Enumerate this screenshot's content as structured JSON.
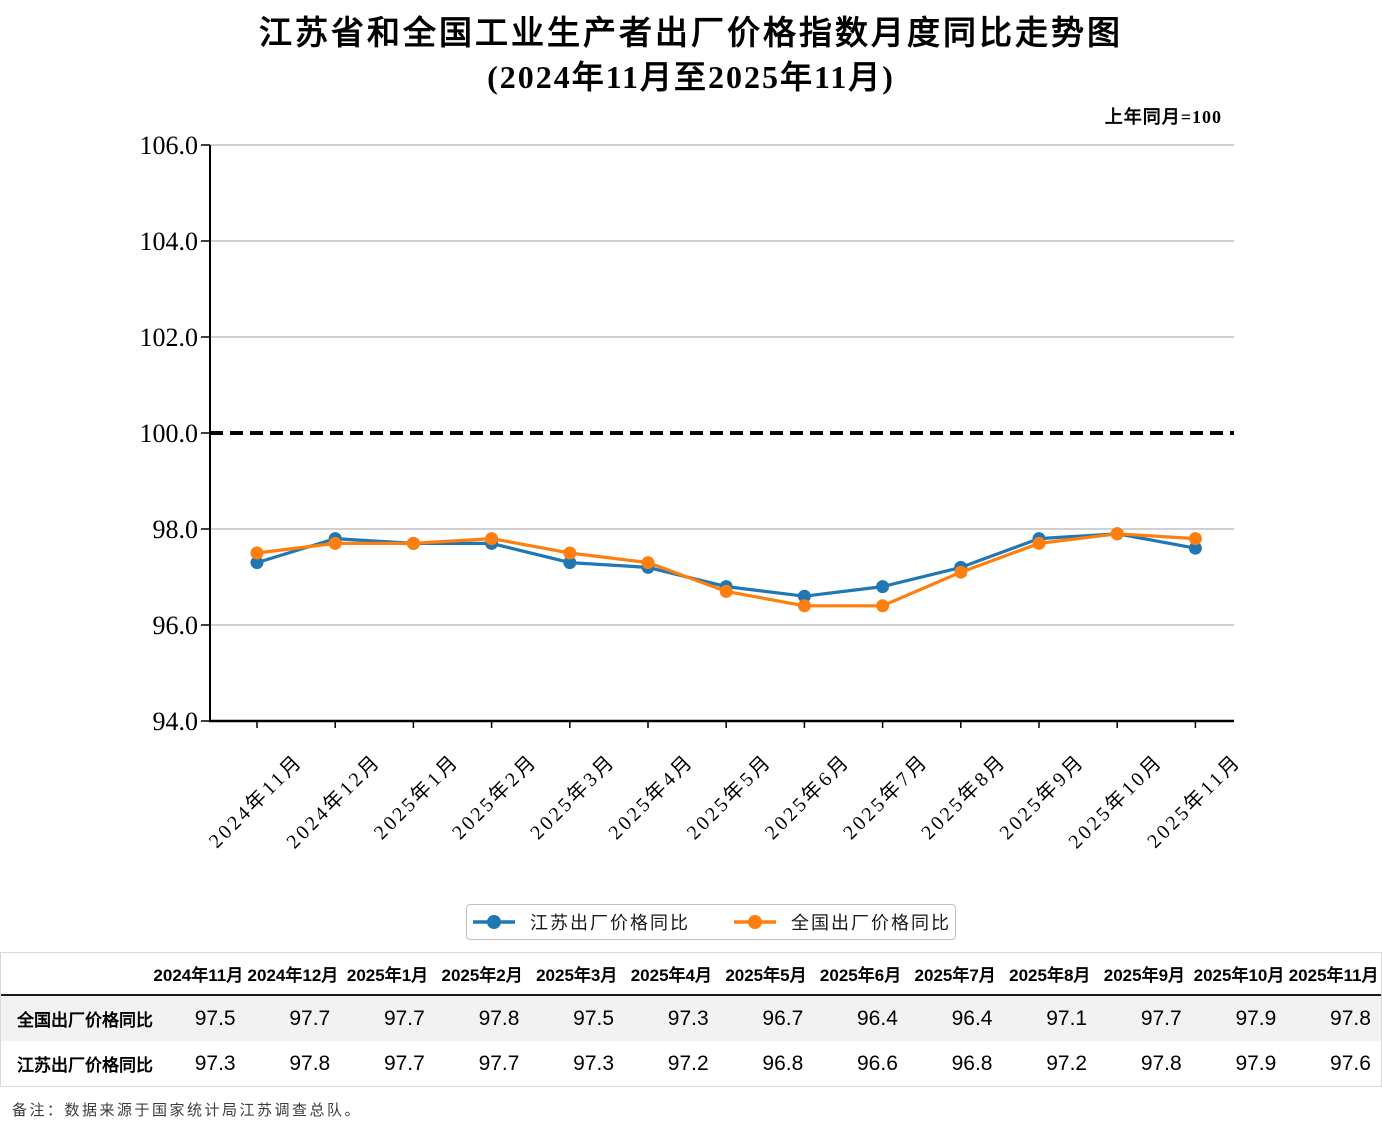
{
  "page": {
    "title_line1": "江苏省和全国工业生产者出厂价格指数月度同比走势图",
    "title_line2": "(2024年11月至2025年11月)",
    "unit_note": "上年同月=100",
    "footnote": "备注：数据来源于国家统计局江苏调查总队。"
  },
  "colors": {
    "jiangsu": "#1F77B4",
    "national": "#FF7F0E",
    "grid": "#B3B3B3",
    "axis": "#000000",
    "ref_line": "#000000",
    "stripe": "#F2F2F2",
    "table_border": "#D9D9D9",
    "header_divider": "#1A1A1A",
    "legend_border": "#BFBFBF",
    "footnote_text": "#3C3C3C"
  },
  "chart_data": {
    "type": "line",
    "title": "江苏省和全国工业生产者出厂价格指数月度同比走势图(2024年11月至2025年11月)",
    "unit_note": "上年同月=100",
    "categories": [
      "2024年11月",
      "2024年12月",
      "2025年1月",
      "2025年2月",
      "2025年3月",
      "2025年4月",
      "2025年5月",
      "2025年6月",
      "2025年7月",
      "2025年8月",
      "2025年9月",
      "2025年10月",
      "2025年11月"
    ],
    "series": [
      {
        "name": "江苏出厂价格同比",
        "color": "#1F77B4",
        "values": [
          97.3,
          97.8,
          97.7,
          97.7,
          97.3,
          97.2,
          96.8,
          96.6,
          96.8,
          97.2,
          97.8,
          97.9,
          97.6
        ]
      },
      {
        "name": "全国出厂价格同比",
        "color": "#FF7F0E",
        "values": [
          97.5,
          97.7,
          97.7,
          97.8,
          97.5,
          97.3,
          96.7,
          96.4,
          96.4,
          97.1,
          97.7,
          97.9,
          97.8
        ]
      }
    ],
    "ylim": [
      94.0,
      106.0
    ],
    "ytick_step": 2.0,
    "ytick_labels": [
      "94.0",
      "96.0",
      "98.0",
      "100.0",
      "102.0",
      "104.0",
      "106.0"
    ],
    "reference_line": {
      "value": 100.0,
      "style": "dashed"
    },
    "grid": true,
    "legend_position": "bottom"
  },
  "table": {
    "columns": [
      "2024年11月",
      "2024年12月",
      "2025年1月",
      "2025年2月",
      "2025年3月",
      "2025年4月",
      "2025年5月",
      "2025年6月",
      "2025年7月",
      "2025年8月",
      "2025年9月",
      "2025年10月",
      "2025年11月"
    ],
    "rows": [
      {
        "label": "全国出厂价格同比",
        "values": [
          97.5,
          97.7,
          97.7,
          97.8,
          97.5,
          97.3,
          96.7,
          96.4,
          96.4,
          97.1,
          97.7,
          97.9,
          97.8
        ]
      },
      {
        "label": "江苏出厂价格同比",
        "values": [
          97.3,
          97.8,
          97.7,
          97.7,
          97.3,
          97.2,
          96.8,
          96.6,
          96.8,
          97.2,
          97.8,
          97.9,
          97.6
        ]
      }
    ]
  }
}
